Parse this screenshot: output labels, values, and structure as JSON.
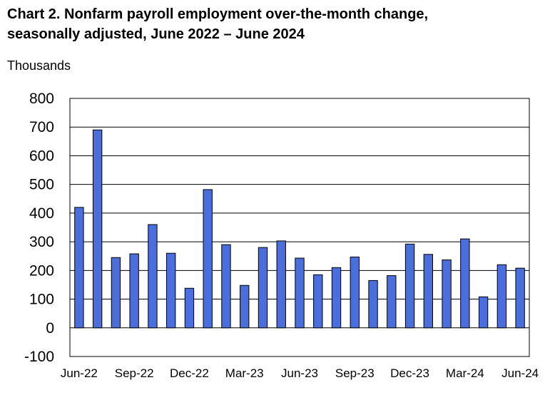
{
  "title_line1": "Chart 2. Nonfarm payroll employment over-the-month change,",
  "title_line2": "seasonally adjusted, June 2022 – June 2024",
  "units_label": "Thousands",
  "chart_data": {
    "type": "bar",
    "title": "Chart 2. Nonfarm payroll employment over-the-month change, seasonally adjusted, June 2022 – June 2024",
    "ylabel": "Thousands",
    "ylim": [
      -100,
      800
    ],
    "yticks": [
      -100,
      0,
      100,
      200,
      300,
      400,
      500,
      600,
      700,
      800
    ],
    "grid": true,
    "bar_color": "#4a6fdc",
    "categories": [
      "Jun-22",
      "Jul-22",
      "Aug-22",
      "Sep-22",
      "Oct-22",
      "Nov-22",
      "Dec-22",
      "Jan-23",
      "Feb-23",
      "Mar-23",
      "Apr-23",
      "May-23",
      "Jun-23",
      "Jul-23",
      "Aug-23",
      "Sep-23",
      "Oct-23",
      "Nov-23",
      "Dec-23",
      "Jan-24",
      "Feb-24",
      "Mar-24",
      "Apr-24",
      "May-24",
      "Jun-24"
    ],
    "x_tick_labels": [
      "Jun-22",
      "Sep-22",
      "Dec-22",
      "Mar-23",
      "Jun-23",
      "Sep-23",
      "Dec-23",
      "Mar-24",
      "Jun-24"
    ],
    "values": [
      420,
      690,
      245,
      258,
      360,
      260,
      138,
      482,
      290,
      148,
      280,
      303,
      243,
      185,
      210,
      247,
      165,
      182,
      292,
      256,
      237,
      310,
      108,
      220,
      208
    ]
  }
}
